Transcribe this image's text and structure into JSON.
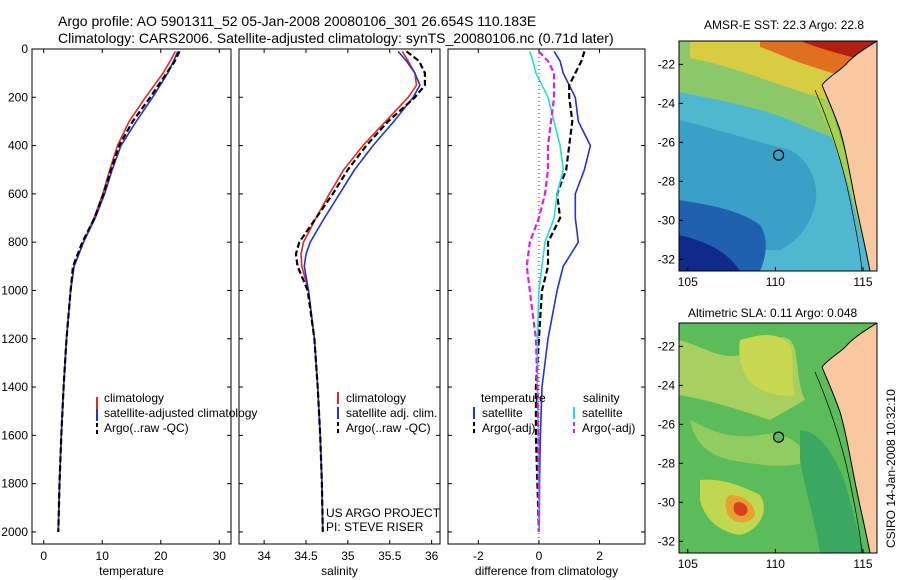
{
  "titles": {
    "line1": "Argo profile: AO 5901311_52 05-Jan-2008 20080106_301 26.654S 110.183E",
    "line2": "Climatology: CARS2006. Satellite-adjusted climatology: synTS_20080106.nc (0.71d later)"
  },
  "credit": "CSIRO 14-Jan-2008 10:32:10",
  "colors": {
    "climatology": "#e8281f",
    "satellite": "#2233d8",
    "argo": "#000000",
    "cyan": "#22dddd",
    "magenta": "#e020e0"
  },
  "chart_data": [
    {
      "type": "line",
      "id": "temperature",
      "xlabel": "temperature",
      "xlim": [
        -2,
        32
      ],
      "ylim": [
        2050,
        0
      ],
      "xticks": [
        0,
        10,
        20,
        30
      ],
      "yticks": [
        0,
        200,
        400,
        600,
        800,
        1000,
        1200,
        1400,
        1600,
        1800,
        2000
      ],
      "depth": [
        10,
        50,
        100,
        200,
        300,
        400,
        500,
        600,
        700,
        800,
        900,
        1000,
        1200,
        1400,
        1600,
        1800,
        2000
      ],
      "series": [
        {
          "name": "climatology",
          "color": "#e8281f",
          "dash": false,
          "values": [
            22.5,
            21.6,
            20.4,
            17.4,
            14.6,
            12.6,
            11.3,
            10.1,
            8.6,
            6.8,
            5.2,
            4.6,
            3.9,
            3.4,
            3.0,
            2.7,
            2.5
          ]
        },
        {
          "name": "satellite-adjusted climatology",
          "color": "#2233d8",
          "dash": false,
          "values": [
            22.9,
            22.2,
            21.2,
            18.6,
            15.8,
            13.2,
            11.7,
            10.4,
            8.8,
            6.8,
            5.2,
            4.6,
            3.9,
            3.4,
            3.0,
            2.7,
            2.5
          ]
        },
        {
          "name": "Argo(..raw -QC)",
          "color": "#000000",
          "dash": true,
          "values": [
            23.2,
            22.4,
            21.0,
            18.2,
            15.2,
            12.9,
            11.5,
            10.2,
            8.7,
            6.6,
            5.0,
            4.6,
            3.9,
            3.4,
            3.0,
            2.7,
            2.5
          ]
        }
      ]
    },
    {
      "type": "line",
      "id": "salinity",
      "xlabel": "salinity",
      "xlim": [
        33.7,
        36.1
      ],
      "ylim": [
        2050,
        0
      ],
      "xticks": [
        34,
        34.5,
        35,
        35.5,
        36
      ],
      "depth": [
        10,
        50,
        100,
        150,
        200,
        300,
        400,
        500,
        600,
        700,
        800,
        850,
        900,
        1000,
        1200,
        1400,
        1600,
        1800,
        2000
      ],
      "series": [
        {
          "name": "climatology",
          "color": "#e8281f",
          "dash": false,
          "values": [
            35.65,
            35.72,
            35.8,
            35.82,
            35.72,
            35.45,
            35.18,
            34.95,
            34.78,
            34.62,
            34.47,
            34.44,
            34.45,
            34.53,
            34.6,
            34.64,
            34.67,
            34.69,
            34.7
          ]
        },
        {
          "name": "satellite adj. clim.",
          "color": "#2233d8",
          "dash": false,
          "values": [
            35.6,
            35.7,
            35.8,
            35.86,
            35.78,
            35.55,
            35.3,
            35.08,
            34.9,
            34.72,
            34.55,
            34.5,
            34.48,
            34.53,
            34.6,
            34.64,
            34.67,
            34.69,
            34.7
          ]
        },
        {
          "name": "Argo(..raw -QC)",
          "color": "#000000",
          "dash": true,
          "values": [
            35.7,
            35.85,
            35.92,
            35.92,
            35.8,
            35.48,
            35.22,
            35.0,
            34.82,
            34.62,
            34.42,
            34.38,
            34.4,
            34.52,
            34.6,
            34.64,
            34.67,
            34.69,
            34.7
          ]
        }
      ]
    },
    {
      "type": "line",
      "id": "difference",
      "xlabel": "difference from climatology",
      "xlim": [
        -3,
        3.5
      ],
      "ylim": [
        2050,
        0
      ],
      "xticks": [
        -2,
        0,
        2
      ],
      "depth": [
        10,
        50,
        100,
        150,
        200,
        300,
        400,
        500,
        600,
        700,
        800,
        900,
        1000,
        1200,
        1400,
        1600,
        1800,
        2000
      ],
      "series": [
        {
          "name": "satellite",
          "group": "temperature",
          "color": "#2233d8",
          "dash": false,
          "values": [
            0.5,
            0.7,
            0.8,
            1.0,
            1.2,
            1.3,
            1.7,
            1.5,
            1.2,
            1.2,
            1.3,
            0.8,
            0.6,
            0.3,
            0.1,
            0.05,
            0.02,
            0.01
          ]
        },
        {
          "name": "Argo(-adj)",
          "group": "temperature",
          "color": "#000000",
          "dash": true,
          "values": [
            1.5,
            1.4,
            1.2,
            1.0,
            1.0,
            1.1,
            1.0,
            0.9,
            0.6,
            0.7,
            0.3,
            0.3,
            0.1,
            0.0,
            -0.1,
            -0.1,
            -0.05,
            0.0
          ]
        },
        {
          "name": "satellite",
          "group": "salinity",
          "color": "#22dddd",
          "dash": false,
          "values": [
            -0.3,
            -0.2,
            -0.1,
            0.1,
            0.3,
            0.5,
            0.7,
            0.8,
            0.6,
            0.5,
            0.2,
            0.1,
            0.0,
            -0.05,
            -0.05,
            -0.02,
            -0.01,
            0.0
          ]
        },
        {
          "name": "Argo(-adj)",
          "group": "salinity",
          "color": "#e020e0",
          "dash": true,
          "values": [
            0.0,
            0.3,
            0.5,
            0.5,
            0.5,
            0.4,
            0.3,
            0.3,
            0.2,
            0.0,
            -0.3,
            -0.4,
            -0.3,
            -0.1,
            -0.05,
            -0.02,
            0.0,
            0.0
          ]
        }
      ]
    },
    {
      "type": "heatmap",
      "id": "sst-map",
      "title": "AMSR-E SST: 22.3 Argo: 22.8",
      "xticks": [
        105,
        110,
        115
      ],
      "yticks": [
        -22,
        -24,
        -26,
        -28,
        -30,
        -32
      ],
      "xlim": [
        104.5,
        115.8
      ],
      "ylim": [
        -32.6,
        -20.8
      ],
      "argo_position": [
        110.183,
        -26.654
      ]
    },
    {
      "type": "heatmap",
      "id": "sla-map",
      "title": "Altimetric SLA: 0.11 Argo: 0.048",
      "xticks": [
        105,
        110,
        115
      ],
      "yticks": [
        -22,
        -24,
        -26,
        -28,
        -30,
        -32
      ],
      "xlim": [
        104.5,
        115.8
      ],
      "ylim": [
        -32.6,
        -20.8
      ],
      "argo_position": [
        110.183,
        -26.654
      ]
    }
  ],
  "legends": {
    "temperature": [
      "climatology",
      "satellite-adjusted climatology",
      "Argo(..raw -QC)"
    ],
    "salinity": [
      "climatology",
      "satellite adj. clim.",
      "Argo(..raw -QC)"
    ],
    "difference": {
      "temp_header": "temperature",
      "sal_header": "salinity",
      "items": [
        "satellite",
        "Argo(-adj)",
        "satellite",
        "Argo(-adj)"
      ]
    }
  },
  "annotation": {
    "line1": "US ARGO PROJECT",
    "line2": "PI: STEVE RISER"
  }
}
